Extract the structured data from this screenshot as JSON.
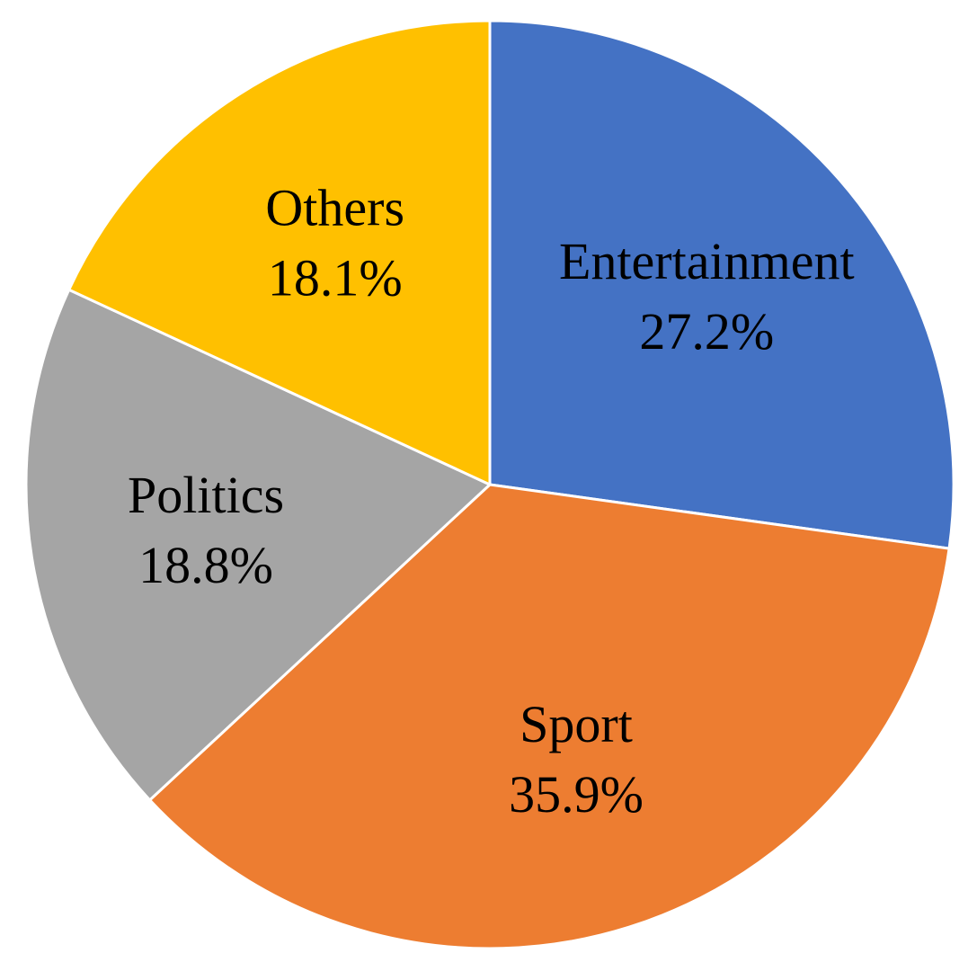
{
  "chart_data": {
    "type": "pie",
    "title": "",
    "start_angle_deg": 0,
    "direction": "clockwise",
    "legend": "none",
    "slices": [
      {
        "label": "Entertainment",
        "value": 27.2,
        "display": "27.2%",
        "color": "#4472C4"
      },
      {
        "label": "Sport",
        "value": 35.9,
        "display": "35.9%",
        "color": "#ED7D31"
      },
      {
        "label": "Politics",
        "value": 18.8,
        "display": "18.8%",
        "color": "#A5A5A5"
      },
      {
        "label": "Others",
        "value": 18.1,
        "display": "18.1%",
        "color": "#FFC000"
      }
    ]
  }
}
